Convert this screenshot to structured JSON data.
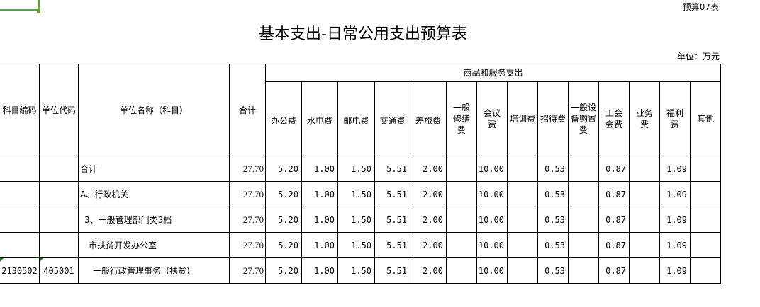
{
  "form_code": "预算07表",
  "title": "基本支出-日常公用支出预算表",
  "unit": "单位：万元",
  "headers": {
    "subject_code": "科目编码",
    "unit_code": "单位代码",
    "unit_name": "单位名称（科目）",
    "total": "合计",
    "group": "商品和服务支出",
    "items": [
      "办公费",
      "水电费",
      "邮电费",
      "交通费",
      "差旅费",
      "一般修缮费",
      "会议费",
      "培训费",
      "招待费",
      "一般设备购置费",
      "工会会费",
      "业务费",
      "福利费",
      "其他"
    ]
  },
  "rows": [
    {
      "code": "",
      "unit": "",
      "name": "合计",
      "total": "27.70",
      "v": [
        "5.20",
        "1.00",
        "1.50",
        "5.51",
        "2.00",
        "",
        "10.00",
        "",
        "0.53",
        "",
        "0.87",
        "",
        "1.09",
        ""
      ]
    },
    {
      "code": "",
      "unit": "",
      "name": "A、行政机关",
      "total": "27.70",
      "v": [
        "5.20",
        "1.00",
        "1.50",
        "5.51",
        "2.00",
        "",
        "10.00",
        "",
        "0.53",
        "",
        "0.87",
        "",
        "1.09",
        ""
      ]
    },
    {
      "code": "",
      "unit": "",
      "name": "3、一般管理部门类3档",
      "total": "27.70",
      "v": [
        "5.20",
        "1.00",
        "1.50",
        "5.51",
        "2.00",
        "",
        "10.00",
        "",
        "0.53",
        "",
        "0.87",
        "",
        "1.09",
        ""
      ]
    },
    {
      "code": "",
      "unit": "",
      "name": "市扶贫开发办公室",
      "total": "27.70",
      "v": [
        "5.20",
        "1.00",
        "1.50",
        "5.51",
        "2.00",
        "",
        "10.00",
        "",
        "0.53",
        "",
        "0.87",
        "",
        "1.09",
        ""
      ]
    },
    {
      "code": "2130502",
      "unit": "405001",
      "name": "一般行政管理事务（扶贫）",
      "total": "27.70",
      "v": [
        "5.20",
        "1.00",
        "1.50",
        "5.51",
        "2.00",
        "",
        "10.00",
        "",
        "0.53",
        "",
        "0.87",
        "",
        "1.09",
        ""
      ]
    }
  ]
}
